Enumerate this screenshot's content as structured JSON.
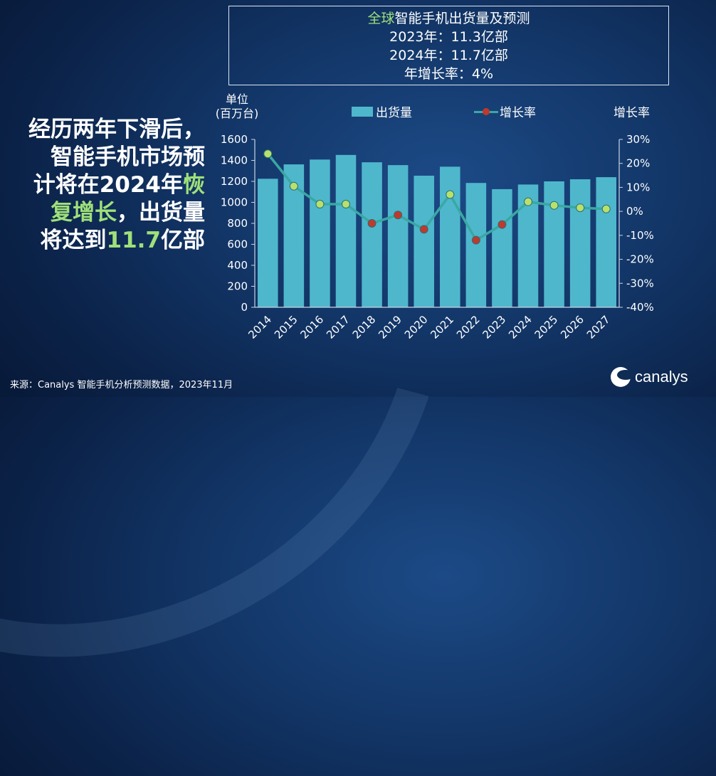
{
  "summary": {
    "title_highlight": "全球",
    "title_rest": "智能手机出货量及预测",
    "line1": "2023年：11.3亿部",
    "line2": "2024年：11.7亿部",
    "line3": "年增长率：4%"
  },
  "headline": {
    "line1": "经历两年下滑后，",
    "line2": "智能手机市场预",
    "line3_a": "计将在2024年",
    "line3_hl": "恢",
    "line4_hl": "复增长",
    "line4_b": "，出货量",
    "line5_a": "将达到",
    "line5_hl": "11.7",
    "line5_b": "亿部"
  },
  "source": "来源：Canalys 智能手机分析预测数据，2023年11月",
  "logo": {
    "text": "canalys"
  },
  "colors": {
    "bar": "#4fb7cc",
    "line": "#3aa8a3",
    "actual_marker": "#c0392b",
    "forecast_marker": "#b9e06a",
    "highlight": "#9fe07a"
  },
  "chart_data": {
    "type": "bar",
    "categories": [
      "2014",
      "2015",
      "2016",
      "2017",
      "2018",
      "2019",
      "2020",
      "2021",
      "2022",
      "2023",
      "2024",
      "2025",
      "2026",
      "2027"
    ],
    "unit_label_line1": "单位",
    "unit_label_line2": "(百万台)",
    "y2_title": "增长率",
    "legend": {
      "bar": "出货量",
      "line": "增长率"
    },
    "ylim": [
      0,
      1600
    ],
    "yticks": [
      "0",
      "200",
      "400",
      "600",
      "800",
      "1000",
      "1200",
      "1400",
      "1600"
    ],
    "y2lim": [
      -40,
      30
    ],
    "y2ticks": [
      "-40%",
      "-30%",
      "-20%",
      "-10%",
      "0%",
      "10%",
      "20%",
      "30%"
    ],
    "series": [
      {
        "name": "出货量",
        "type": "bar",
        "values": [
          1225,
          1362,
          1408,
          1452,
          1382,
          1355,
          1254,
          1340,
          1185,
          1126,
          1170,
          1200,
          1220,
          1240
        ]
      },
      {
        "name": "增长率",
        "type": "line",
        "axis": "right",
        "values": [
          24,
          10.5,
          3,
          3,
          -5,
          -1.5,
          -7.5,
          7,
          -12,
          -5.5,
          4,
          2.5,
          1.5,
          1
        ]
      }
    ],
    "marker_types": [
      "forecast",
      "forecast",
      "forecast",
      "forecast",
      "actual",
      "actual",
      "actual",
      "forecast",
      "actual",
      "actual",
      "forecast",
      "forecast",
      "forecast",
      "forecast"
    ],
    "legend_placement": "top",
    "grid": false
  }
}
